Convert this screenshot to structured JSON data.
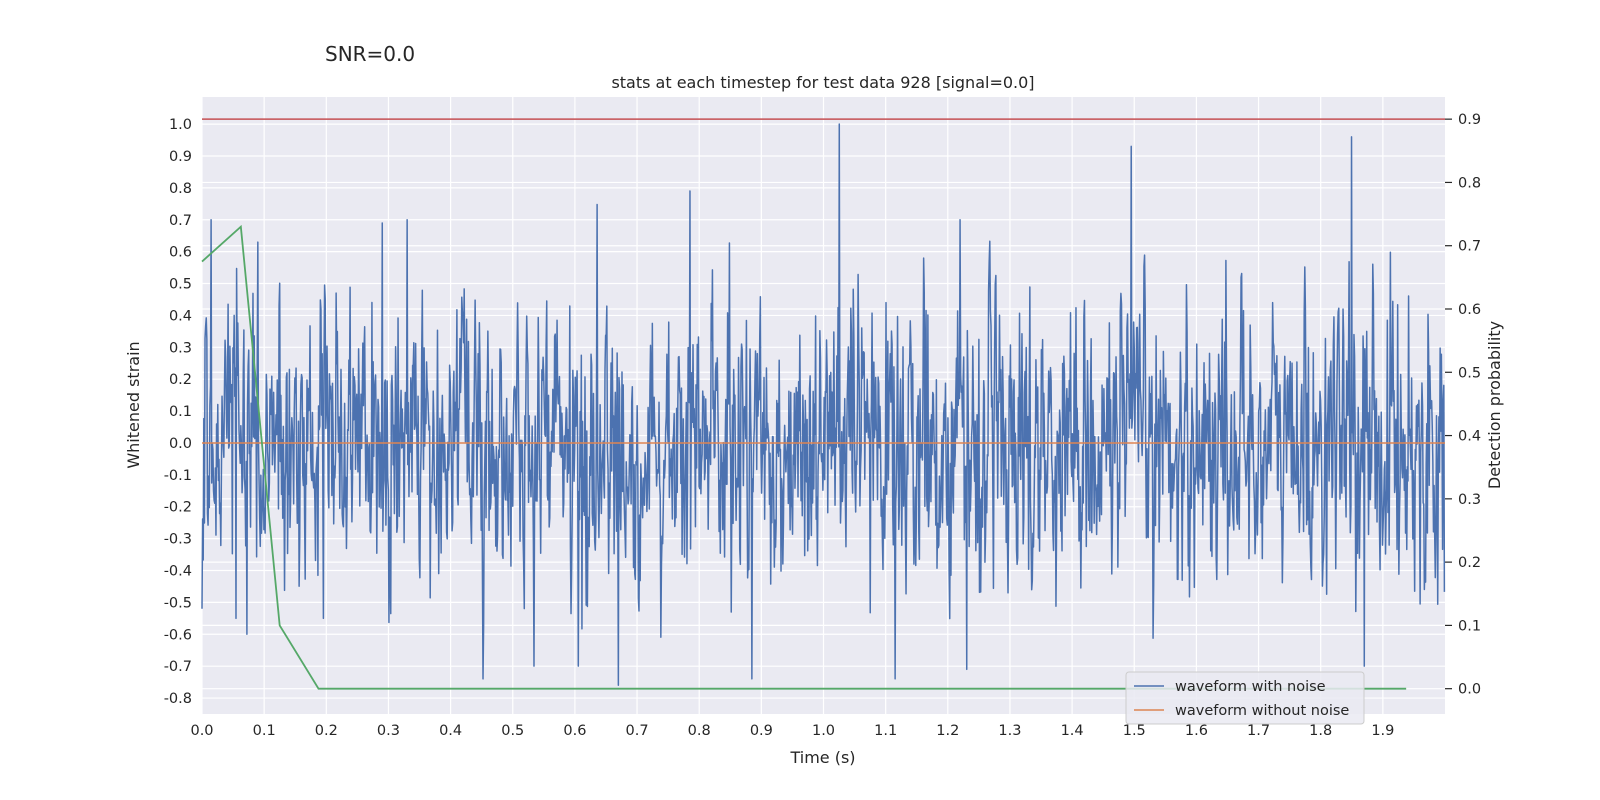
{
  "suptitle": "SNR=0.0",
  "chart_data": {
    "type": "line",
    "title": "stats at each timestep for test data 928 [signal=0.0]",
    "xlabel": "Time (s)",
    "ylabel": "Whitened strain",
    "y2label": "Detection probability",
    "xlim": [
      0.0,
      2.0
    ],
    "ylim": [
      -0.85,
      1.085
    ],
    "y2lim": [
      -0.04,
      0.935
    ],
    "xticks": [
      "0.0",
      "0.1",
      "0.2",
      "0.3",
      "0.4",
      "0.5",
      "0.6",
      "0.7",
      "0.8",
      "0.9",
      "1.0",
      "1.1",
      "1.2",
      "1.3",
      "1.4",
      "1.5",
      "1.6",
      "1.7",
      "1.8",
      "1.9"
    ],
    "yticks": [
      "1.0",
      "0.9",
      "0.8",
      "0.7",
      "0.6",
      "0.5",
      "0.4",
      "0.3",
      "0.2",
      "0.1",
      "0.0",
      "-0.1",
      "-0.2",
      "-0.3",
      "-0.4",
      "-0.5",
      "-0.6",
      "-0.7",
      "-0.8"
    ],
    "y2ticks": [
      "0.9",
      "0.8",
      "0.7",
      "0.6",
      "0.5",
      "0.4",
      "0.3",
      "0.2",
      "0.1",
      "0.0"
    ],
    "threshold_line": {
      "y2": 0.9,
      "color": "#c44e52"
    },
    "series": [
      {
        "name": "waveform with noise",
        "color": "#4c72b0",
        "axis": "left",
        "description": "approx. 2048 samples of whitened noise between about -0.76 and 1.0",
        "sample_count": 2048,
        "peaks": [
          {
            "x": 0.0,
            "y": -0.52
          },
          {
            "x": 0.015,
            "y": 0.7
          },
          {
            "x": 0.055,
            "y": -0.55
          },
          {
            "x": 0.072,
            "y": -0.6
          },
          {
            "x": 0.09,
            "y": 0.63
          },
          {
            "x": 0.195,
            "y": -0.55
          },
          {
            "x": 0.33,
            "y": 0.7
          },
          {
            "x": 0.29,
            "y": 0.69
          },
          {
            "x": 0.605,
            "y": -0.7
          },
          {
            "x": 0.67,
            "y": -0.76
          },
          {
            "x": 0.785,
            "y": 0.79
          },
          {
            "x": 0.885,
            "y": -0.74
          },
          {
            "x": 1.025,
            "y": 1.0
          },
          {
            "x": 1.22,
            "y": 0.7
          },
          {
            "x": 1.23,
            "y": -0.71
          },
          {
            "x": 1.495,
            "y": 0.93
          },
          {
            "x": 1.85,
            "y": 0.96
          },
          {
            "x": 1.87,
            "y": -0.7
          }
        ]
      },
      {
        "name": "waveform without noise",
        "color": "#dd8452",
        "axis": "left",
        "x": [
          0.0,
          2.0
        ],
        "y": [
          0.0,
          0.0
        ]
      },
      {
        "name": "detection probability",
        "color": "#55a868",
        "axis": "right",
        "x": [
          0.0,
          0.0625,
          0.125,
          0.1875,
          0.25,
          0.5,
          1.0,
          1.5,
          1.9375
        ],
        "y": [
          0.675,
          0.73,
          0.1,
          0.0,
          0.0,
          0.0,
          0.0,
          0.0,
          0.0
        ]
      }
    ],
    "legend": {
      "location": "lower right",
      "entries": [
        "waveform with noise",
        "waveform without noise"
      ]
    }
  }
}
